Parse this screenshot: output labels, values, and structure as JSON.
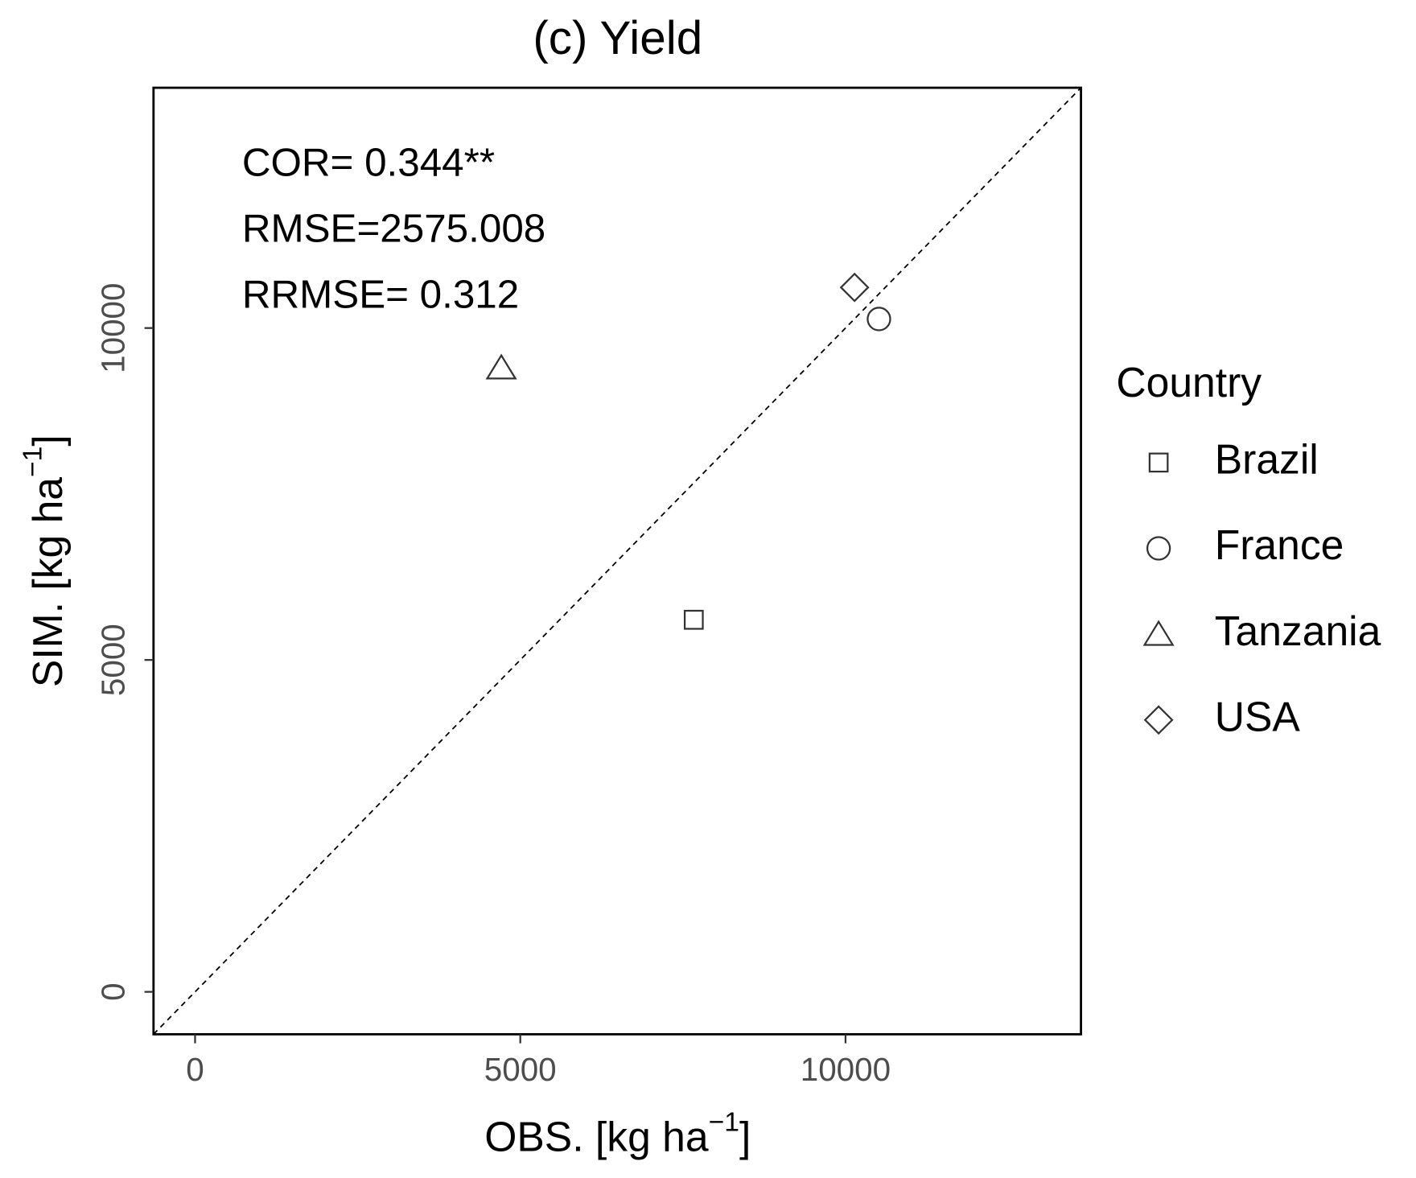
{
  "chart_data": {
    "type": "scatter",
    "title": "(c) Yield",
    "xlabel": [
      "OBS. [kg ha",
      "−1",
      "]"
    ],
    "ylabel": [
      "SIM. [kg ha",
      "−1",
      "]"
    ],
    "annotations": [
      "COR= 0.344**",
      "RMSE=2575.008",
      "RRMSE= 0.312"
    ],
    "legend_title": "Country",
    "xlim": [
      -639,
      13620
    ],
    "ylim": [
      -639,
      13620
    ],
    "xticks": [
      0,
      5000,
      10000
    ],
    "yticks": [
      0,
      5000,
      10000
    ],
    "reference_line": "y=x",
    "series": [
      {
        "name": "Brazil",
        "marker": "square",
        "color": "#333333",
        "x": [
          7667
        ],
        "values": [
          5605
        ]
      },
      {
        "name": "France",
        "marker": "circle",
        "color": "#333333",
        "x": [
          10514
        ],
        "values": [
          10136
        ]
      },
      {
        "name": "Tanzania",
        "marker": "triangle",
        "color": "#333333",
        "x": [
          4708
        ],
        "values": [
          9401
        ]
      },
      {
        "name": "USA",
        "marker": "diamond",
        "color": "#333333",
        "x": [
          10139
        ],
        "values": [
          10612
        ]
      }
    ]
  }
}
